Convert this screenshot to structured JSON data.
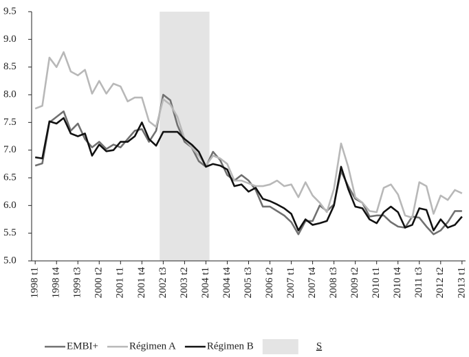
{
  "chart_data": {
    "type": "line",
    "categories": [
      "1998 t1",
      null,
      null,
      "1998 t4",
      null,
      null,
      "1999 t3",
      null,
      null,
      "2000 t2",
      null,
      null,
      "2001 t1",
      null,
      null,
      "2001 t4",
      null,
      null,
      "2002 t3",
      null,
      null,
      "2003 t2",
      null,
      null,
      "2004 t1",
      null,
      null,
      "2004 t4",
      null,
      null,
      "2005 t3",
      null,
      null,
      "2006 t2",
      null,
      null,
      "2007 t1",
      null,
      null,
      "2007 t4",
      null,
      null,
      "2008 t3",
      null,
      null,
      "2009 t2",
      null,
      null,
      "2010 t1",
      null,
      null,
      "2010 t4",
      null,
      null,
      "2011 t3",
      null,
      null,
      "2012 t2",
      null,
      null,
      "2013 t1"
    ],
    "series": [
      {
        "name": "EMBI+",
        "color": "#707070",
        "values": [
          6.72,
          6.76,
          7.5,
          7.6,
          7.7,
          7.35,
          7.48,
          7.2,
          7.05,
          7.15,
          7.02,
          7.1,
          7.05,
          7.2,
          7.35,
          7.38,
          7.15,
          7.35,
          8.0,
          7.9,
          7.45,
          7.15,
          7.05,
          6.8,
          6.7,
          6.97,
          6.82,
          6.55,
          6.45,
          6.55,
          6.45,
          6.28,
          5.98,
          5.98,
          5.9,
          5.82,
          5.7,
          5.48,
          5.72,
          5.72,
          6.0,
          5.9,
          6.02,
          6.62,
          6.35,
          6.12,
          6.05,
          5.8,
          5.82,
          5.82,
          5.7,
          5.62,
          5.6,
          5.8,
          5.78,
          5.62,
          5.48,
          5.55,
          5.7,
          5.9,
          5.9
        ]
      },
      {
        "name": "Régimen A",
        "color": "#b8b8b8",
        "values": [
          7.75,
          7.8,
          8.67,
          8.5,
          8.77,
          8.42,
          8.35,
          8.45,
          8.02,
          8.25,
          8.02,
          8.2,
          8.15,
          7.88,
          7.95,
          7.95,
          7.52,
          7.42,
          7.92,
          7.82,
          7.6,
          7.2,
          7.05,
          6.9,
          6.72,
          6.9,
          6.85,
          6.75,
          6.45,
          6.45,
          6.4,
          6.35,
          6.35,
          6.38,
          6.45,
          6.35,
          6.38,
          6.15,
          6.42,
          6.18,
          6.05,
          5.88,
          6.3,
          7.12,
          6.7,
          6.15,
          6.05,
          5.9,
          5.88,
          6.32,
          6.38,
          6.2,
          5.82,
          5.78,
          6.42,
          6.35,
          5.85,
          6.18,
          6.1,
          6.28,
          6.22
        ]
      },
      {
        "name": "Régimen B",
        "color": "#111111",
        "values": [
          6.87,
          6.85,
          7.52,
          7.48,
          7.58,
          7.3,
          7.25,
          7.3,
          6.9,
          7.1,
          6.98,
          7.0,
          7.15,
          7.15,
          7.25,
          7.5,
          7.2,
          7.08,
          7.33,
          7.33,
          7.33,
          7.2,
          7.1,
          6.97,
          6.7,
          6.75,
          6.72,
          6.65,
          6.35,
          6.38,
          6.25,
          6.32,
          6.12,
          6.08,
          6.02,
          5.95,
          5.85,
          5.55,
          5.75,
          5.65,
          5.68,
          5.72,
          6.0,
          6.7,
          6.3,
          5.98,
          5.95,
          5.75,
          5.68,
          5.88,
          5.98,
          5.88,
          5.6,
          5.65,
          5.95,
          5.92,
          5.55,
          5.75,
          5.6,
          5.65,
          5.8
        ]
      }
    ],
    "shade": {
      "name": "S",
      "from": "2002 t3",
      "to": "2004 t1",
      "color": "#e4e4e4"
    },
    "ylim": [
      5,
      9.5
    ],
    "yticks": [
      {
        "value": 5,
        "label": "5.0"
      },
      5.5,
      {
        "value": 6,
        "label": "6.0"
      },
      6.5,
      {
        "value": 7,
        "label": "7.0"
      },
      7.5,
      {
        "value": 8,
        "label": "8.0"
      },
      8.5,
      {
        "value": 9,
        "label": "9.0"
      },
      9.5
    ],
    "grid": false,
    "legend": "bottom"
  }
}
